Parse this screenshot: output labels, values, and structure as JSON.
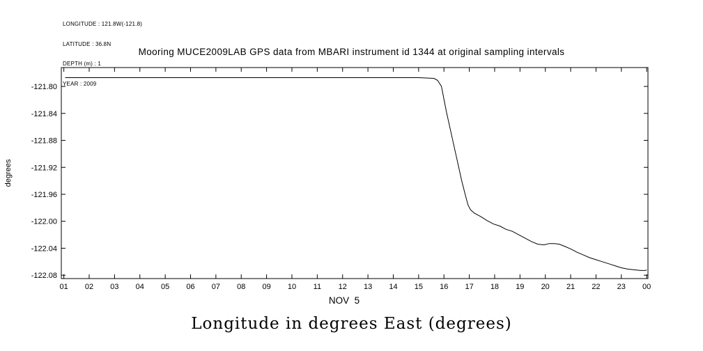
{
  "info_panel": {
    "lines": [
      "LONGITUDE : 121.8W(-121.8)",
      "LATITUDE : 36.8N",
      "DEPTH (m) : 1",
      "YEAR : 2009"
    ]
  },
  "chart_data": {
    "type": "line",
    "title": "Mooring MUCE2009LAB GPS data from MBARI instrument id 1344 at original sampling intervals",
    "xlabel": "NOV  5",
    "ylabel": "degrees",
    "caption": "Longitude in degrees East (degrees)",
    "xlim": [
      0.9,
      24.05
    ],
    "ylim": [
      -122.085,
      -121.772
    ],
    "grid": false,
    "legend": false,
    "line_color": "#000000",
    "axis_color": "#000000",
    "x_tick_values": [
      1,
      2,
      3,
      4,
      5,
      6,
      7,
      8,
      9,
      10,
      11,
      12,
      13,
      14,
      15,
      16,
      17,
      18,
      19,
      20,
      21,
      22,
      23,
      24
    ],
    "x_tick_labels": [
      "01",
      "02",
      "03",
      "04",
      "05",
      "06",
      "07",
      "08",
      "09",
      "10",
      "11",
      "12",
      "13",
      "14",
      "15",
      "16",
      "17",
      "18",
      "19",
      "20",
      "21",
      "22",
      "23",
      "00"
    ],
    "y_tick_values": [
      -121.8,
      -121.84,
      -121.88,
      -121.92,
      -121.96,
      -122.0,
      -122.04,
      -122.08
    ],
    "y_tick_labels": [
      "-121.80",
      "-121.84",
      "-121.88",
      "-121.92",
      "-121.96",
      "-122.00",
      "-122.04",
      "-122.08"
    ],
    "series": [
      {
        "name": "longitude_deg_east",
        "points": [
          [
            1.05,
            -121.787
          ],
          [
            2,
            -121.787
          ],
          [
            3,
            -121.787
          ],
          [
            4,
            -121.787
          ],
          [
            5,
            -121.787
          ],
          [
            6,
            -121.787
          ],
          [
            7,
            -121.787
          ],
          [
            8,
            -121.787
          ],
          [
            9,
            -121.787
          ],
          [
            10,
            -121.787
          ],
          [
            11,
            -121.787
          ],
          [
            12,
            -121.787
          ],
          [
            13,
            -121.787
          ],
          [
            14,
            -121.787
          ],
          [
            15,
            -121.787
          ],
          [
            15.6,
            -121.788
          ],
          [
            15.75,
            -121.791
          ],
          [
            15.9,
            -121.8
          ],
          [
            16.1,
            -121.838
          ],
          [
            16.3,
            -121.872
          ],
          [
            16.5,
            -121.906
          ],
          [
            16.7,
            -121.94
          ],
          [
            16.85,
            -121.962
          ],
          [
            16.95,
            -121.976
          ],
          [
            17.05,
            -121.983
          ],
          [
            17.2,
            -121.988
          ],
          [
            17.45,
            -121.993
          ],
          [
            17.7,
            -121.999
          ],
          [
            17.95,
            -122.004
          ],
          [
            18.2,
            -122.007
          ],
          [
            18.45,
            -122.012
          ],
          [
            18.7,
            -122.015
          ],
          [
            18.95,
            -122.02
          ],
          [
            19.2,
            -122.025
          ],
          [
            19.45,
            -122.03
          ],
          [
            19.7,
            -122.034
          ],
          [
            19.95,
            -122.035
          ],
          [
            20.15,
            -122.033
          ],
          [
            20.35,
            -122.033
          ],
          [
            20.55,
            -122.034
          ],
          [
            20.75,
            -122.037
          ],
          [
            21.0,
            -122.041
          ],
          [
            21.25,
            -122.046
          ],
          [
            21.5,
            -122.05
          ],
          [
            21.75,
            -122.054
          ],
          [
            22.0,
            -122.057
          ],
          [
            22.25,
            -122.06
          ],
          [
            22.5,
            -122.063
          ],
          [
            22.75,
            -122.066
          ],
          [
            23.0,
            -122.069
          ],
          [
            23.25,
            -122.071
          ],
          [
            23.5,
            -122.072
          ],
          [
            23.75,
            -122.073
          ],
          [
            23.95,
            -122.073
          ],
          [
            24.0,
            -122.072
          ]
        ]
      }
    ]
  }
}
